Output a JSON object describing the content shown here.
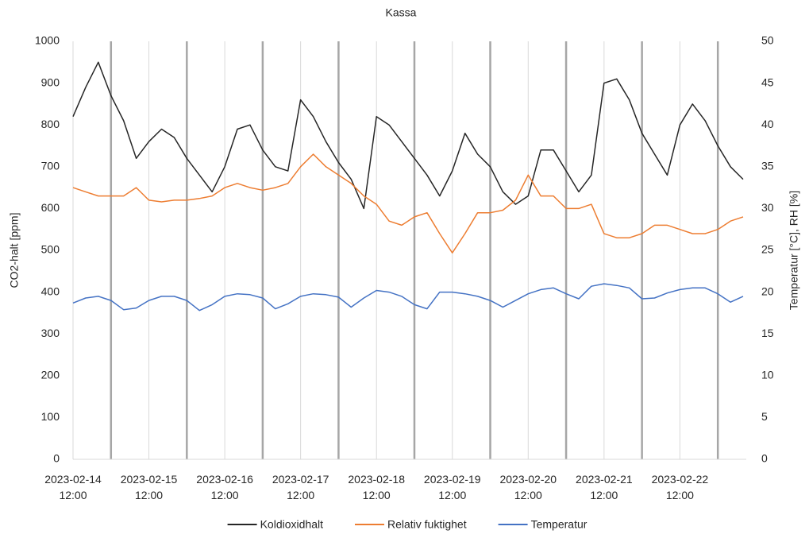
{
  "chart_data": {
    "type": "line",
    "title": "Kassa",
    "y_label": "CO2-halt [ppm]",
    "y2_label": "Temperatur [°C], RH [%]",
    "x": [
      "2023-02-14 12:00",
      "2023-02-14 16:00",
      "2023-02-14 20:00",
      "2023-02-15 00:00",
      "2023-02-15 04:00",
      "2023-02-15 08:00",
      "2023-02-15 12:00",
      "2023-02-15 16:00",
      "2023-02-15 20:00",
      "2023-02-16 00:00",
      "2023-02-16 04:00",
      "2023-02-16 08:00",
      "2023-02-16 12:00",
      "2023-02-16 16:00",
      "2023-02-16 20:00",
      "2023-02-17 00:00",
      "2023-02-17 04:00",
      "2023-02-17 08:00",
      "2023-02-17 12:00",
      "2023-02-17 16:00",
      "2023-02-17 20:00",
      "2023-02-18 00:00",
      "2023-02-18 04:00",
      "2023-02-18 08:00",
      "2023-02-18 12:00",
      "2023-02-18 16:00",
      "2023-02-18 20:00",
      "2023-02-19 00:00",
      "2023-02-19 04:00",
      "2023-02-19 08:00",
      "2023-02-19 12:00",
      "2023-02-19 16:00",
      "2023-02-19 20:00",
      "2023-02-20 00:00",
      "2023-02-20 04:00",
      "2023-02-20 08:00",
      "2023-02-20 12:00",
      "2023-02-20 16:00",
      "2023-02-20 20:00",
      "2023-02-21 00:00",
      "2023-02-21 04:00",
      "2023-02-21 08:00",
      "2023-02-21 12:00",
      "2023-02-21 16:00",
      "2023-02-21 20:00",
      "2023-02-22 00:00",
      "2023-02-22 04:00",
      "2023-02-22 08:00",
      "2023-02-22 12:00",
      "2023-02-22 16:00",
      "2023-02-22 20:00",
      "2023-02-23 00:00",
      "2023-02-23 04:00",
      "2023-02-23 08:00"
    ],
    "series": [
      {
        "name": "Koldioxidhalt",
        "color": "#262626",
        "axis": "y",
        "values": [
          820,
          890,
          950,
          870,
          810,
          720,
          760,
          790,
          770,
          720,
          680,
          640,
          700,
          790,
          800,
          740,
          700,
          690,
          860,
          820,
          760,
          710,
          670,
          600,
          820,
          800,
          760,
          720,
          680,
          630,
          690,
          780,
          730,
          700,
          640,
          610,
          630,
          740,
          740,
          690,
          640,
          680,
          900,
          910,
          860,
          780,
          730,
          680,
          800,
          850,
          810,
          750,
          700,
          670
        ]
      },
      {
        "name": "Relativ fuktighet",
        "color": "#ed7d31",
        "axis": "y2",
        "values": [
          32.5,
          32,
          31.5,
          31.5,
          31.5,
          32.5,
          31,
          30.8,
          31,
          31,
          31.2,
          31.5,
          32.5,
          33,
          32.5,
          32.2,
          32.5,
          33,
          35,
          36.5,
          35,
          34,
          33,
          31.5,
          30.5,
          28.5,
          28,
          29,
          29.5,
          27,
          24.7,
          27,
          29.5,
          29.5,
          29.8,
          31,
          34,
          31.5,
          31.5,
          30,
          30,
          30.5,
          27,
          26.5,
          26.5,
          27,
          28,
          28,
          27.5,
          27,
          27,
          27.5,
          28.5,
          29
        ]
      },
      {
        "name": "Temperatur",
        "color": "#4472c4",
        "axis": "y2",
        "values": [
          18.7,
          19.3,
          19.5,
          19.0,
          17.9,
          18.1,
          19.0,
          19.5,
          19.5,
          19.0,
          17.8,
          18.5,
          19.5,
          19.8,
          19.7,
          19.3,
          18.0,
          18.6,
          19.5,
          19.8,
          19.7,
          19.4,
          18.2,
          19.3,
          20.2,
          20.0,
          19.5,
          18.5,
          18.0,
          20.0,
          20.0,
          19.8,
          19.5,
          19.0,
          18.2,
          19.0,
          19.8,
          20.3,
          20.5,
          19.8,
          19.2,
          20.7,
          21.0,
          20.8,
          20.5,
          19.2,
          19.3,
          19.9,
          20.3,
          20.5,
          20.5,
          19.8,
          18.8,
          19.5
        ]
      }
    ],
    "xlim": [
      "2023-02-14 12:00",
      "2023-02-23 09:00"
    ],
    "xticks": [
      "2023-02-14 12:00",
      "2023-02-15 12:00",
      "2023-02-16 12:00",
      "2023-02-17 12:00",
      "2023-02-18 12:00",
      "2023-02-19 12:00",
      "2023-02-20 12:00",
      "2023-02-21 12:00",
      "2023-02-22 12:00"
    ],
    "ylim": [
      0,
      1000
    ],
    "yticks": [
      0,
      100,
      200,
      300,
      400,
      500,
      600,
      700,
      800,
      900,
      1000
    ],
    "y2lim": [
      0,
      50
    ],
    "y2ticks": [
      0,
      5,
      10,
      15,
      20,
      25,
      30,
      35,
      40,
      45,
      50
    ],
    "grid": "x",
    "legend": "bottom"
  }
}
